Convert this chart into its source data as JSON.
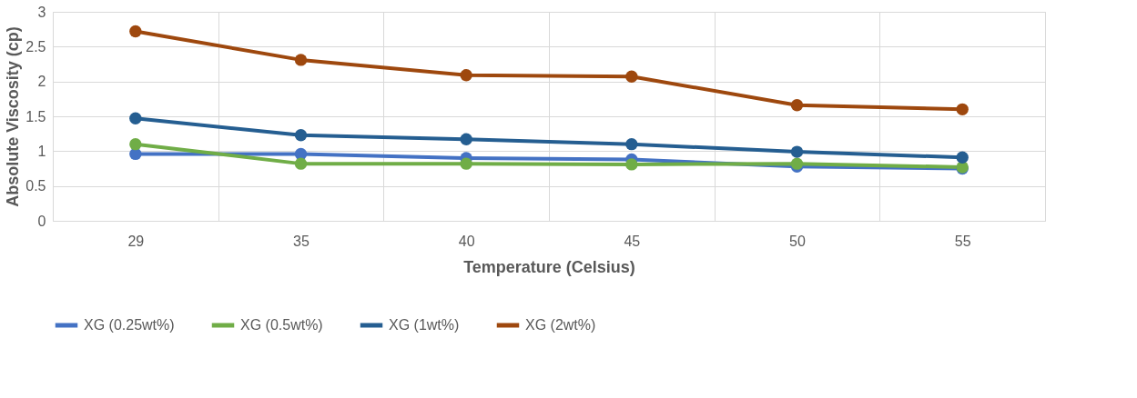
{
  "chart_data": {
    "type": "line",
    "xlabel": "Temperature  (Celsius)",
    "ylabel": "Absolute Viscosity (cp)",
    "categories": [
      "29",
      "35",
      "40",
      "45",
      "50",
      "55"
    ],
    "series": [
      {
        "name": "XG (0.25wt%)",
        "color": "#4472c4",
        "values": [
          0.96,
          0.96,
          0.9,
          0.88,
          0.78,
          0.75
        ]
      },
      {
        "name": "XG (0.5wt%)",
        "color": "#70ad47",
        "values": [
          1.1,
          0.82,
          0.82,
          0.81,
          0.82,
          0.77
        ]
      },
      {
        "name": "XG (1wt%)",
        "color": "#255e91",
        "values": [
          1.47,
          1.23,
          1.17,
          1.1,
          0.99,
          0.91
        ]
      },
      {
        "name": "XG (2wt%)",
        "color": "#9e480e",
        "values": [
          2.72,
          2.31,
          2.09,
          2.07,
          1.66,
          1.6
        ]
      }
    ],
    "ylim": [
      0,
      3
    ],
    "yticks": [
      0,
      0.5,
      1,
      1.5,
      2,
      2.5,
      3
    ],
    "grid": true,
    "legend": "bottom",
    "marker": "circle",
    "line_style": "solid"
  }
}
